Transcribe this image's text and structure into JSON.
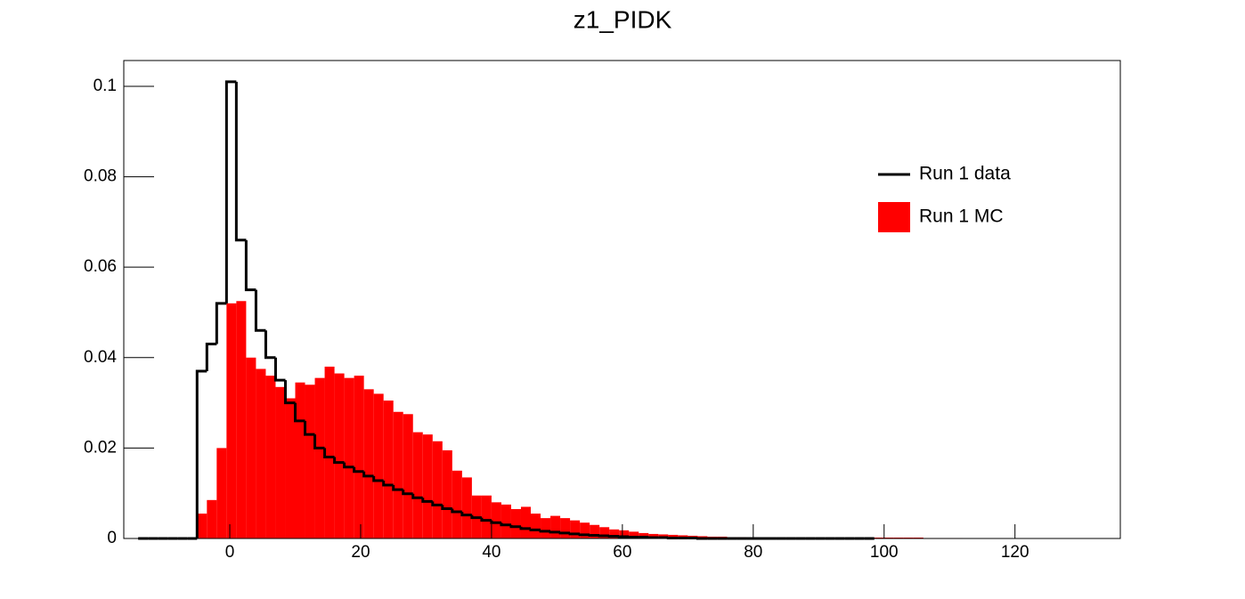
{
  "chart_data": {
    "type": "histogram",
    "title": "z1_PIDK",
    "bins": [
      -14,
      -12.5,
      -11,
      -9.5,
      -8,
      -6.5,
      -5,
      -3.5,
      -2,
      -0.5,
      1,
      2.5,
      4,
      5.5,
      7,
      8.5,
      10,
      11.5,
      13,
      14.5,
      16,
      17.5,
      19,
      20.5,
      22,
      23.5,
      25,
      26.5,
      28,
      29.5,
      31,
      32.5,
      34,
      35.5,
      37,
      38.5,
      40,
      41.5,
      43,
      44.5,
      46,
      47.5,
      49,
      50.5,
      52,
      53.5,
      55,
      56.5,
      58,
      59.5,
      61,
      62.5,
      64,
      65.5,
      67,
      68.5,
      70,
      71.5,
      73,
      74.5,
      76,
      77.5,
      79,
      80.5,
      82,
      83.5,
      85,
      86.5,
      88,
      89.5,
      91,
      92.5,
      94,
      95.5,
      97,
      98.5,
      100,
      101.5,
      103,
      104.5,
      106,
      107.5,
      109,
      110.5,
      112
    ],
    "series": [
      {
        "name": "Run 1 MC",
        "color": "#ff0000",
        "style": "fill",
        "values": [
          null,
          null,
          null,
          null,
          null,
          null,
          0.0055,
          0.0085,
          0.02,
          0.052,
          0.0525,
          0.04,
          0.0375,
          0.036,
          0.0335,
          0.031,
          0.0345,
          0.034,
          0.0355,
          0.038,
          0.0365,
          0.0355,
          0.036,
          0.033,
          0.032,
          0.0305,
          0.028,
          0.0275,
          0.0235,
          0.023,
          0.0215,
          0.0195,
          0.015,
          0.0135,
          0.0095,
          0.0095,
          0.008,
          0.0075,
          0.0065,
          0.007,
          0.0055,
          0.0045,
          0.005,
          0.0045,
          0.004,
          0.0035,
          0.003,
          0.0025,
          0.002,
          0.0018,
          0.0015,
          0.0012,
          0.001,
          0.0009,
          0.0008,
          0.0007,
          0.0006,
          0.0005,
          0.0004,
          0.0004,
          0.0003,
          0.0003,
          0.0002,
          0.0002,
          0.0002,
          0.0001,
          0.0001,
          0.0001,
          0.0001,
          0.0001,
          0.0001,
          0.0001,
          0.0001,
          0.0001,
          0.0001,
          0.0002,
          0.0002,
          0.0002,
          0.0002,
          0.0002,
          0.0001,
          0.0001,
          0.0001,
          0.0001
        ]
      },
      {
        "name": "Run 1 data",
        "color": "#000000",
        "style": "line",
        "values": [
          0,
          0,
          0,
          0,
          0,
          0,
          0.037,
          0.043,
          0.052,
          0.101,
          0.066,
          0.055,
          0.046,
          0.04,
          0.035,
          0.03,
          0.026,
          0.023,
          0.02,
          0.018,
          0.0168,
          0.0158,
          0.0148,
          0.0138,
          0.0128,
          0.0118,
          0.0108,
          0.0099,
          0.009,
          0.0082,
          0.0074,
          0.0066,
          0.0059,
          0.0052,
          0.0046,
          0.004,
          0.0035,
          0.003,
          0.0026,
          0.0022,
          0.0019,
          0.0016,
          0.0014,
          0.0012,
          0.001,
          0.0008,
          0.0007,
          0.0006,
          0.0005,
          0.0004,
          0.0003,
          0.0003,
          0.0002,
          0.0002,
          0.0001,
          0.0001,
          0.0001,
          0,
          0,
          0,
          0,
          0,
          0,
          0,
          0,
          0,
          0,
          0,
          0,
          0,
          0,
          0,
          0,
          0,
          0,
          null,
          null,
          null,
          null,
          null,
          null,
          null,
          null,
          null
        ]
      }
    ],
    "xlim": [
      -16.2,
      136.1
    ],
    "ylim": [
      0,
      0.1057
    ],
    "xticks": [
      0,
      20,
      40,
      60,
      80,
      100,
      120
    ],
    "yticks": [
      0,
      0.02,
      0.04,
      0.06,
      0.08,
      0.1
    ],
    "legend": "upper right"
  }
}
